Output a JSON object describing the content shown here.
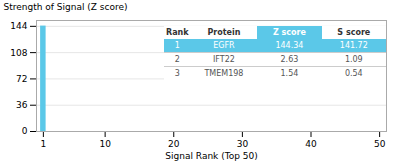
{
  "chart_data": {
    "type": "bar",
    "x": [
      1
    ],
    "values": [
      144.34
    ],
    "color": "#5bc8e8",
    "xlim": [
      0,
      51
    ],
    "xticks": [
      1,
      10,
      20,
      30,
      40,
      50
    ],
    "ylim": [
      0,
      152
    ],
    "yticks": [
      0,
      36,
      72,
      108,
      144
    ],
    "xlabel": "Signal Rank (Top 50)",
    "ylabel": "Strength of Signal (Z score)",
    "grid": true,
    "table": {
      "header": [
        "Rank",
        "Protein",
        "Z score",
        "S score"
      ],
      "rows": [
        [
          "1",
          "EGFR",
          "144.34",
          "141.72"
        ],
        [
          "2",
          "IFT22",
          "2.63",
          "1.09"
        ],
        [
          "3",
          "TMEM198",
          "1.54",
          "0.54"
        ]
      ]
    }
  }
}
